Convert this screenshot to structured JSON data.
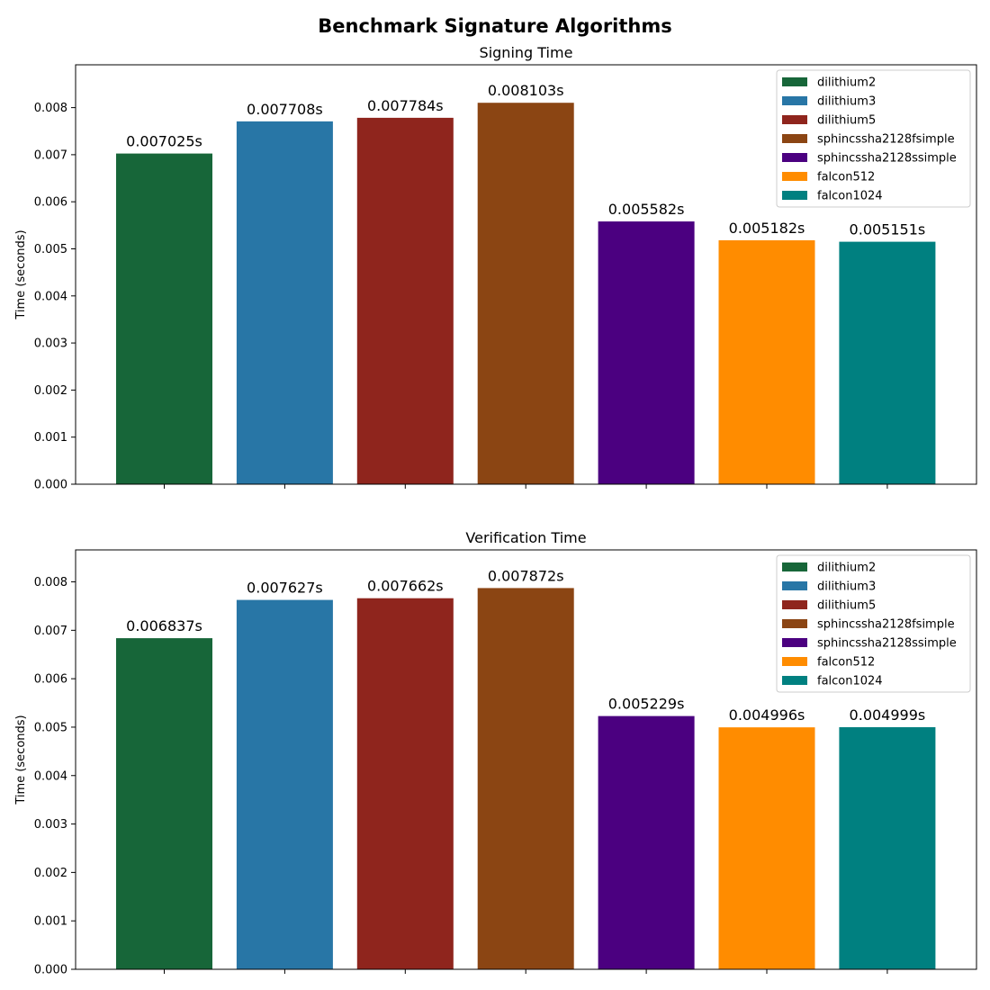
{
  "figure": {
    "title": "Benchmark Signature Algorithms"
  },
  "chart_data": [
    {
      "type": "bar",
      "title": "Signing Time",
      "xlabel": "",
      "ylabel": "Time (seconds)",
      "ylim": [
        0,
        0.00891
      ],
      "yticks": [
        "0.000",
        "0.001",
        "0.002",
        "0.003",
        "0.004",
        "0.005",
        "0.006",
        "0.007",
        "0.008"
      ],
      "categories": [
        "dilithium2",
        "dilithium3",
        "dilithium5",
        "sphincssha2128fsimple",
        "sphincssha2128ssimple",
        "falcon512",
        "falcon1024"
      ],
      "values": [
        0.007025,
        0.007708,
        0.007784,
        0.008103,
        0.005582,
        0.005182,
        0.005151
      ],
      "data_labels": [
        "0.007025s",
        "0.007708s",
        "0.007784s",
        "0.008103s",
        "0.005582s",
        "0.005182s",
        "0.005151s"
      ],
      "colors": [
        "#176639",
        "#2876a6",
        "#8f251d",
        "#8b4513",
        "#4b0080",
        "#ff8c00",
        "#008080"
      ],
      "legend": [
        "dilithium2",
        "dilithium3",
        "dilithium5",
        "sphincssha2128fsimple",
        "sphincssha2128ssimple",
        "falcon512",
        "falcon1024"
      ],
      "legend_position": "top-right",
      "grid": false
    },
    {
      "type": "bar",
      "title": "Verification Time",
      "xlabel": "",
      "ylabel": "Time (seconds)",
      "ylim": [
        0,
        0.00866
      ],
      "yticks": [
        "0.000",
        "0.001",
        "0.002",
        "0.003",
        "0.004",
        "0.005",
        "0.006",
        "0.007",
        "0.008"
      ],
      "categories": [
        "dilithium2",
        "dilithium3",
        "dilithium5",
        "sphincssha2128fsimple",
        "sphincssha2128ssimple",
        "falcon512",
        "falcon1024"
      ],
      "values": [
        0.006837,
        0.007627,
        0.007662,
        0.007872,
        0.005229,
        0.004996,
        0.004999
      ],
      "data_labels": [
        "0.006837s",
        "0.007627s",
        "0.007662s",
        "0.007872s",
        "0.005229s",
        "0.004996s",
        "0.004999s"
      ],
      "colors": [
        "#176639",
        "#2876a6",
        "#8f251d",
        "#8b4513",
        "#4b0080",
        "#ff8c00",
        "#008080"
      ],
      "legend": [
        "dilithium2",
        "dilithium3",
        "dilithium5",
        "sphincssha2128fsimple",
        "sphincssha2128ssimple",
        "falcon512",
        "falcon1024"
      ],
      "legend_position": "top-right",
      "grid": false
    }
  ]
}
